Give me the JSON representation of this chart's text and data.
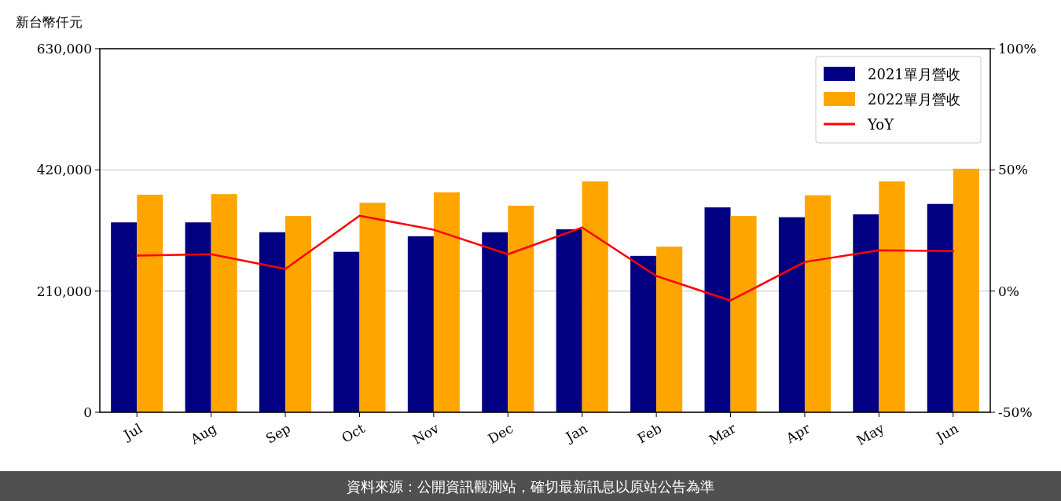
{
  "chart_data": {
    "type": "bar",
    "ylabel": "新台幣仟元",
    "categories": [
      "Jul",
      "Aug",
      "Sep",
      "Oct",
      "Nov",
      "Dec",
      "Jan",
      "Feb",
      "Mar",
      "Apr",
      "May",
      "Jun"
    ],
    "series": [
      {
        "name": "2021單月營收",
        "color": "#000080",
        "values": [
          329000,
          329000,
          312000,
          278000,
          305000,
          312000,
          317000,
          271000,
          355000,
          338000,
          343000,
          361000
        ]
      },
      {
        "name": "2022單月營收",
        "color": "#ffa500",
        "values": [
          377000,
          378000,
          340000,
          363000,
          381000,
          358000,
          400000,
          287000,
          340000,
          376000,
          400000,
          422000
        ]
      },
      {
        "name": "YoY",
        "type": "line",
        "axis": "y2",
        "color": "#ff0000",
        "values": [
          14.6,
          15.2,
          9.1,
          31.1,
          25.3,
          15.2,
          26.2,
          6.2,
          -3.9,
          12.0,
          16.8,
          16.5
        ]
      }
    ],
    "ylim": [
      0,
      630000
    ],
    "yticks": [
      {
        "value": 0,
        "label": "0"
      },
      {
        "value": 210000,
        "label": "210,000"
      },
      {
        "value": 420000,
        "label": "420,000"
      },
      {
        "value": 630000,
        "label": "630,000"
      }
    ],
    "y2lim": [
      -50,
      100
    ],
    "y2ticks": [
      {
        "value": -50,
        "label": "-50%"
      },
      {
        "value": 0,
        "label": "0%"
      },
      {
        "value": 50,
        "label": "50%"
      },
      {
        "value": 100,
        "label": "100%"
      }
    ],
    "grid": "y",
    "legend": "top right",
    "marker": "none",
    "line_style": "solid",
    "annotations": [
      "資料來源：公開資訊觀測站，確切最新訊息以原站公告為準"
    ]
  }
}
